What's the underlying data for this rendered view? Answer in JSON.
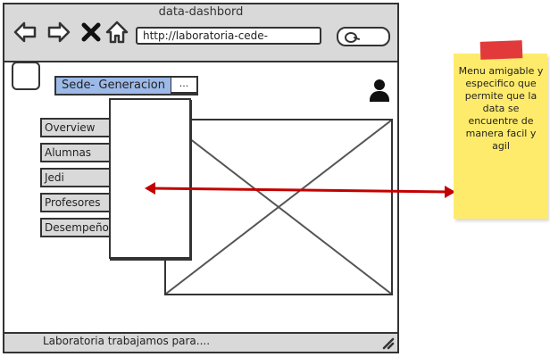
{
  "window": {
    "title": "data-dashbord",
    "url": "http://laboratoria-cede-"
  },
  "header": {
    "dropdown_value": "Sede- Generacion",
    "dropdown_arrow": "..."
  },
  "sidebar": {
    "items": [
      {
        "label": "Overview"
      },
      {
        "label": "Alumnas"
      },
      {
        "label": "Jedi"
      },
      {
        "label": "Profesores"
      },
      {
        "label": "Desempeño"
      }
    ]
  },
  "statusbar": {
    "text": "Laboratoria  trabajamos para...."
  },
  "annotation": {
    "note": "Menu amigable y especifico que permite que la data se encuentre de manera facil y agil",
    "arrow_color": "#c40000",
    "note_color": "#ffeb6b",
    "tape_color": "#e23a3a"
  },
  "icons": [
    "back-arrow-icon",
    "forward-arrow-icon",
    "close-icon",
    "home-icon",
    "search-icon",
    "user-icon",
    "resize-grip-icon"
  ]
}
